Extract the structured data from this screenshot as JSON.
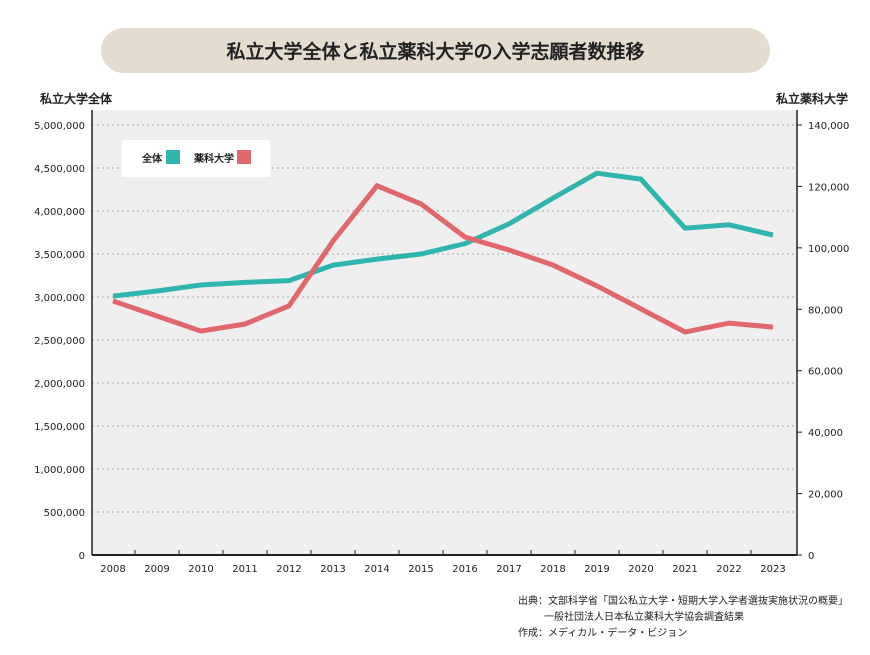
{
  "chart_data": {
    "type": "line",
    "title": "私立大学全体と私立薬科大学の入学志願者数推移",
    "ylabel_left": "私立大学全体",
    "ylabel_right": "私立薬科大学",
    "categories": [
      "2008",
      "2009",
      "2010",
      "2011",
      "2012",
      "2013",
      "2014",
      "2015",
      "2016",
      "2017",
      "2018",
      "2019",
      "2020",
      "2021",
      "2022",
      "2023"
    ],
    "ylim_left": [
      0,
      5000000
    ],
    "ylim_right": [
      0,
      140000
    ],
    "yticks_left": [
      "0",
      "500,000",
      "1,000,000",
      "1,500,000",
      "2,000,000",
      "2,500,000",
      "3,000,000",
      "3,500,000",
      "4,000,000",
      "4,500,000",
      "5,000,000"
    ],
    "yticks_right": [
      "0",
      "20,000",
      "40,000",
      "60,000",
      "80,000",
      "100,000",
      "120,000",
      "140,000"
    ],
    "grid": true,
    "legend_placement": "top-left",
    "series": [
      {
        "name": "全体",
        "axis": "left",
        "color": "#2fb5ad",
        "values": [
          3010000,
          3070000,
          3140000,
          3170000,
          3190000,
          3370000,
          3440000,
          3500000,
          3620000,
          3850000,
          4150000,
          4440000,
          4370000,
          3800000,
          3840000,
          3720000
        ]
      },
      {
        "name": "薬科大学",
        "axis": "right",
        "color": "#e0676c",
        "values": [
          82700,
          77800,
          72900,
          75200,
          81100,
          102200,
          120200,
          114300,
          103500,
          99300,
          94400,
          87600,
          80100,
          72600,
          75500,
          74200
        ]
      }
    ]
  },
  "source": {
    "line1": "出典：文部科学省「国公私立大学・短期大学入学者選抜実施状況の概要」",
    "line2": "一般社団法人日本私立薬科大学協会調査結果",
    "line3": "作成：メディカル・データ・ビジョン"
  }
}
